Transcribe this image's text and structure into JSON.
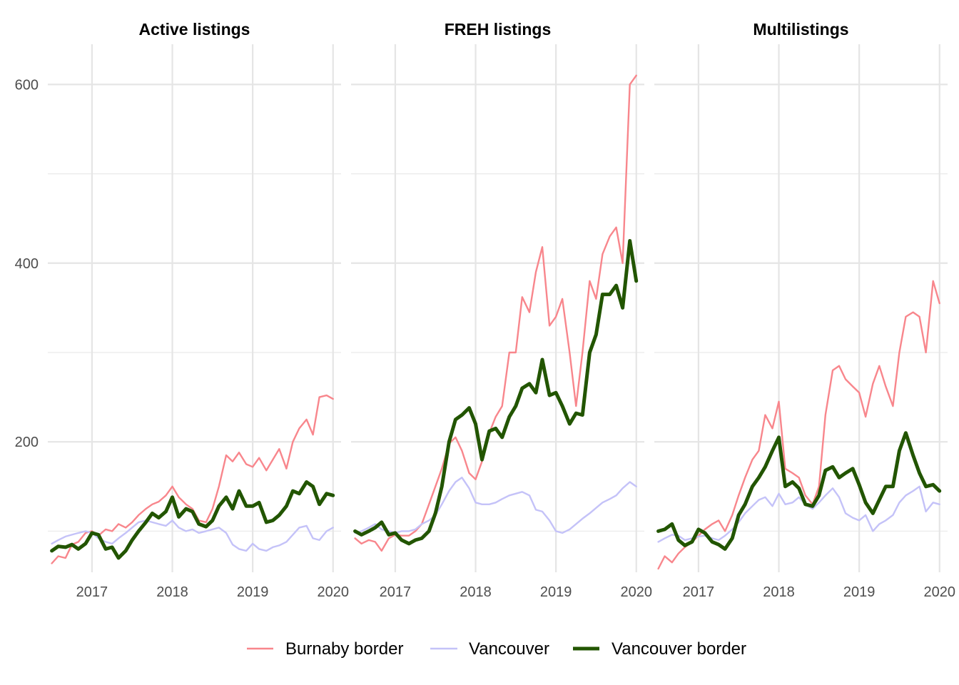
{
  "chart_data": {
    "type": "line",
    "facets": [
      "Active listings",
      "FREH listings",
      "Multilistings"
    ],
    "x_ticks": [
      {
        "value": 2017,
        "label": "2017"
      },
      {
        "value": 2018,
        "label": "2018"
      },
      {
        "value": 2019,
        "label": "2019"
      },
      {
        "value": 2020,
        "label": "2020"
      }
    ],
    "y_ticks": [
      {
        "value": 200,
        "label": "200"
      },
      {
        "value": 400,
        "label": "400"
      },
      {
        "value": 600,
        "label": "600"
      }
    ],
    "y_minor": [
      100,
      300,
      500
    ],
    "xlim": [
      2016.45,
      2020.1
    ],
    "ylim": [
      54,
      645
    ],
    "legend": {
      "position": "bottom",
      "entries": [
        {
          "name": "Burnaby border",
          "color": "#f8868c",
          "width": "thin"
        },
        {
          "name": "Vancouver",
          "color": "#c4c2f8",
          "width": "thin"
        },
        {
          "name": "Vancouver border",
          "color": "#225500",
          "width": "thick"
        }
      ]
    },
    "panels": [
      {
        "title": "Active listings",
        "series": [
          {
            "name": "Burnaby border",
            "x": [
              2016.5,
              2016.58,
              2016.67,
              2016.75,
              2016.83,
              2016.92,
              2017.0,
              2017.08,
              2017.17,
              2017.25,
              2017.33,
              2017.42,
              2017.5,
              2017.58,
              2017.67,
              2017.75,
              2017.83,
              2017.92,
              2018.0,
              2018.08,
              2018.17,
              2018.25,
              2018.33,
              2018.42,
              2018.5,
              2018.58,
              2018.67,
              2018.75,
              2018.83,
              2018.92,
              2019.0,
              2019.08,
              2019.17,
              2019.25,
              2019.33,
              2019.42,
              2019.5,
              2019.58,
              2019.67,
              2019.75,
              2019.83,
              2019.92,
              2020.0
            ],
            "y": [
              64,
              72,
              70,
              85,
              88,
              98,
              100,
              95,
              102,
              100,
              108,
              104,
              110,
              118,
              125,
              130,
              133,
              140,
              150,
              138,
              130,
              125,
              112,
              110,
              125,
              150,
              185,
              178,
              188,
              175,
              172,
              182,
              168,
              180,
              192,
              170,
              200,
              215,
              225,
              208,
              250,
              252,
              248
            ]
          },
          {
            "name": "Vancouver",
            "x": [
              2016.5,
              2016.58,
              2016.67,
              2016.75,
              2016.83,
              2016.92,
              2017.0,
              2017.08,
              2017.17,
              2017.25,
              2017.33,
              2017.42,
              2017.5,
              2017.58,
              2017.67,
              2017.75,
              2017.83,
              2017.92,
              2018.0,
              2018.08,
              2018.17,
              2018.25,
              2018.33,
              2018.42,
              2018.5,
              2018.58,
              2018.67,
              2018.75,
              2018.83,
              2018.92,
              2019.0,
              2019.08,
              2019.17,
              2019.25,
              2019.33,
              2019.42,
              2019.5,
              2019.58,
              2019.67,
              2019.75,
              2019.83,
              2019.92,
              2020.0
            ],
            "y": [
              86,
              90,
              94,
              96,
              98,
              100,
              98,
              92,
              88,
              86,
              92,
              98,
              104,
              110,
              112,
              110,
              108,
              106,
              112,
              104,
              100,
              102,
              98,
              100,
              102,
              104,
              98,
              85,
              80,
              78,
              86,
              80,
              78,
              82,
              84,
              88,
              96,
              104,
              106,
              92,
              90,
              100,
              104
            ]
          },
          {
            "name": "Vancouver border",
            "x": [
              2016.5,
              2016.58,
              2016.67,
              2016.75,
              2016.83,
              2016.92,
              2017.0,
              2017.08,
              2017.17,
              2017.25,
              2017.33,
              2017.42,
              2017.5,
              2017.58,
              2017.67,
              2017.75,
              2017.83,
              2017.92,
              2018.0,
              2018.08,
              2018.17,
              2018.25,
              2018.33,
              2018.42,
              2018.5,
              2018.58,
              2018.67,
              2018.75,
              2018.83,
              2018.92,
              2019.0,
              2019.08,
              2019.17,
              2019.25,
              2019.33,
              2019.42,
              2019.5,
              2019.58,
              2019.67,
              2019.75,
              2019.83,
              2019.92,
              2020.0
            ],
            "y": [
              78,
              83,
              82,
              85,
              80,
              86,
              98,
              96,
              80,
              82,
              70,
              78,
              90,
              100,
              110,
              120,
              115,
              122,
              138,
              116,
              125,
              122,
              108,
              105,
              112,
              128,
              138,
              125,
              145,
              128,
              128,
              132,
              110,
              112,
              118,
              128,
              145,
              142,
              155,
              150,
              130,
              142,
              140
            ]
          }
        ]
      },
      {
        "title": "FREH listings",
        "series": [
          {
            "name": "Burnaby border",
            "x": [
              2016.5,
              2016.58,
              2016.67,
              2016.75,
              2016.83,
              2016.92,
              2017.0,
              2017.08,
              2017.17,
              2017.25,
              2017.33,
              2017.42,
              2017.5,
              2017.58,
              2017.67,
              2017.75,
              2017.83,
              2017.92,
              2018.0,
              2018.08,
              2018.17,
              2018.25,
              2018.33,
              2018.42,
              2018.5,
              2018.58,
              2018.67,
              2018.75,
              2018.83,
              2018.92,
              2019.0,
              2019.08,
              2019.17,
              2019.25,
              2019.33,
              2019.42,
              2019.5,
              2019.58,
              2019.67,
              2019.75,
              2019.83,
              2019.92,
              2020.0
            ],
            "y": [
              92,
              86,
              90,
              88,
              78,
              92,
              96,
              95,
              95,
              100,
              108,
              130,
              150,
              170,
              198,
              205,
              190,
              165,
              158,
              178,
              210,
              228,
              240,
              300,
              300,
              362,
              345,
              390,
              418,
              330,
              340,
              360,
              300,
              240,
              300,
              380,
              360,
              410,
              430,
              440,
              400,
              600,
              610
            ]
          },
          {
            "name": "Vancouver",
            "x": [
              2016.5,
              2016.58,
              2016.67,
              2016.75,
              2016.83,
              2016.92,
              2017.0,
              2017.08,
              2017.17,
              2017.25,
              2017.33,
              2017.42,
              2017.5,
              2017.58,
              2017.67,
              2017.75,
              2017.83,
              2017.92,
              2018.0,
              2018.08,
              2018.17,
              2018.25,
              2018.33,
              2018.42,
              2018.5,
              2018.58,
              2018.67,
              2018.75,
              2018.83,
              2018.92,
              2019.0,
              2019.08,
              2019.17,
              2019.25,
              2019.33,
              2019.42,
              2019.5,
              2019.58,
              2019.67,
              2019.75,
              2019.83,
              2019.92,
              2020.0
            ],
            "y": [
              98,
              100,
              104,
              108,
              102,
              100,
              98,
              100,
              100,
              102,
              108,
              112,
              118,
              130,
              145,
              155,
              160,
              148,
              132,
              130,
              130,
              132,
              136,
              140,
              142,
              144,
              140,
              124,
              122,
              112,
              100,
              98,
              102,
              108,
              114,
              120,
              126,
              132,
              136,
              140,
              148,
              155,
              150
            ]
          },
          {
            "name": "Vancouver border",
            "x": [
              2016.5,
              2016.58,
              2016.67,
              2016.75,
              2016.83,
              2016.92,
              2017.0,
              2017.08,
              2017.17,
              2017.25,
              2017.33,
              2017.42,
              2017.5,
              2017.58,
              2017.67,
              2017.75,
              2017.83,
              2017.92,
              2018.0,
              2018.08,
              2018.17,
              2018.25,
              2018.33,
              2018.42,
              2018.5,
              2018.58,
              2018.67,
              2018.75,
              2018.83,
              2018.92,
              2019.0,
              2019.08,
              2019.17,
              2019.25,
              2019.33,
              2019.42,
              2019.5,
              2019.58,
              2019.67,
              2019.75,
              2019.83,
              2019.92,
              2020.0
            ],
            "y": [
              100,
              96,
              100,
              104,
              110,
              96,
              98,
              90,
              86,
              90,
              92,
              100,
              120,
              150,
              200,
              225,
              230,
              238,
              220,
              180,
              212,
              215,
              205,
              228,
              240,
              260,
              265,
              255,
              292,
              252,
              255,
              240,
              220,
              232,
              230,
              300,
              320,
              365,
              365,
              375,
              350,
              425,
              380
            ]
          }
        ]
      },
      {
        "title": "Multilistings",
        "series": [
          {
            "name": "Burnaby border",
            "x": [
              2016.5,
              2016.58,
              2016.67,
              2016.75,
              2016.83,
              2016.92,
              2017.0,
              2017.08,
              2017.17,
              2017.25,
              2017.33,
              2017.42,
              2017.5,
              2017.58,
              2017.67,
              2017.75,
              2017.83,
              2017.92,
              2018.0,
              2018.08,
              2018.17,
              2018.25,
              2018.33,
              2018.42,
              2018.5,
              2018.58,
              2018.67,
              2018.75,
              2018.83,
              2018.92,
              2019.0,
              2019.08,
              2019.17,
              2019.25,
              2019.33,
              2019.42,
              2019.5,
              2019.58,
              2019.67,
              2019.75,
              2019.83,
              2019.92,
              2020.0
            ],
            "y": [
              58,
              72,
              65,
              75,
              82,
              88,
              95,
              102,
              108,
              112,
              100,
              118,
              140,
              160,
              180,
              190,
              230,
              215,
              245,
              170,
              165,
              160,
              140,
              130,
              150,
              230,
              280,
              285,
              270,
              262,
              255,
              228,
              265,
              285,
              262,
              240,
              300,
              340,
              345,
              340,
              300,
              380,
              355
            ]
          },
          {
            "name": "Vancouver",
            "x": [
              2016.5,
              2016.58,
              2016.67,
              2016.75,
              2016.83,
              2016.92,
              2017.0,
              2017.08,
              2017.17,
              2017.25,
              2017.33,
              2017.42,
              2017.5,
              2017.58,
              2017.67,
              2017.75,
              2017.83,
              2017.92,
              2018.0,
              2018.08,
              2018.17,
              2018.25,
              2018.33,
              2018.42,
              2018.5,
              2018.58,
              2018.67,
              2018.75,
              2018.83,
              2018.92,
              2019.0,
              2019.08,
              2019.17,
              2019.25,
              2019.33,
              2019.42,
              2019.5,
              2019.58,
              2019.67,
              2019.75,
              2019.83,
              2019.92,
              2020.0
            ],
            "y": [
              88,
              92,
              96,
              95,
              90,
              92,
              94,
              95,
              92,
              90,
              95,
              102,
              110,
              120,
              128,
              135,
              138,
              128,
              142,
              130,
              132,
              138,
              130,
              125,
              132,
              140,
              148,
              138,
              120,
              115,
              112,
              118,
              100,
              108,
              112,
              118,
              132,
              140,
              145,
              150,
              122,
              132,
              130
            ]
          },
          {
            "name": "Vancouver border",
            "x": [
              2016.5,
              2016.58,
              2016.67,
              2016.75,
              2016.83,
              2016.92,
              2017.0,
              2017.08,
              2017.17,
              2017.25,
              2017.33,
              2017.42,
              2017.5,
              2017.58,
              2017.67,
              2017.75,
              2017.83,
              2017.92,
              2018.0,
              2018.08,
              2018.17,
              2018.25,
              2018.33,
              2018.42,
              2018.5,
              2018.58,
              2018.67,
              2018.75,
              2018.83,
              2018.92,
              2019.0,
              2019.08,
              2019.17,
              2019.25,
              2019.33,
              2019.42,
              2019.5,
              2019.58,
              2019.67,
              2019.75,
              2019.83,
              2019.92,
              2020.0
            ],
            "y": [
              100,
              102,
              108,
              90,
              84,
              88,
              102,
              98,
              88,
              85,
              80,
              92,
              118,
              130,
              150,
              160,
              172,
              190,
              205,
              150,
              155,
              148,
              130,
              128,
              140,
              168,
              172,
              160,
              165,
              170,
              152,
              132,
              120,
              135,
              150,
              150,
              190,
              210,
              185,
              165,
              150,
              152,
              145
            ]
          }
        ]
      }
    ]
  }
}
